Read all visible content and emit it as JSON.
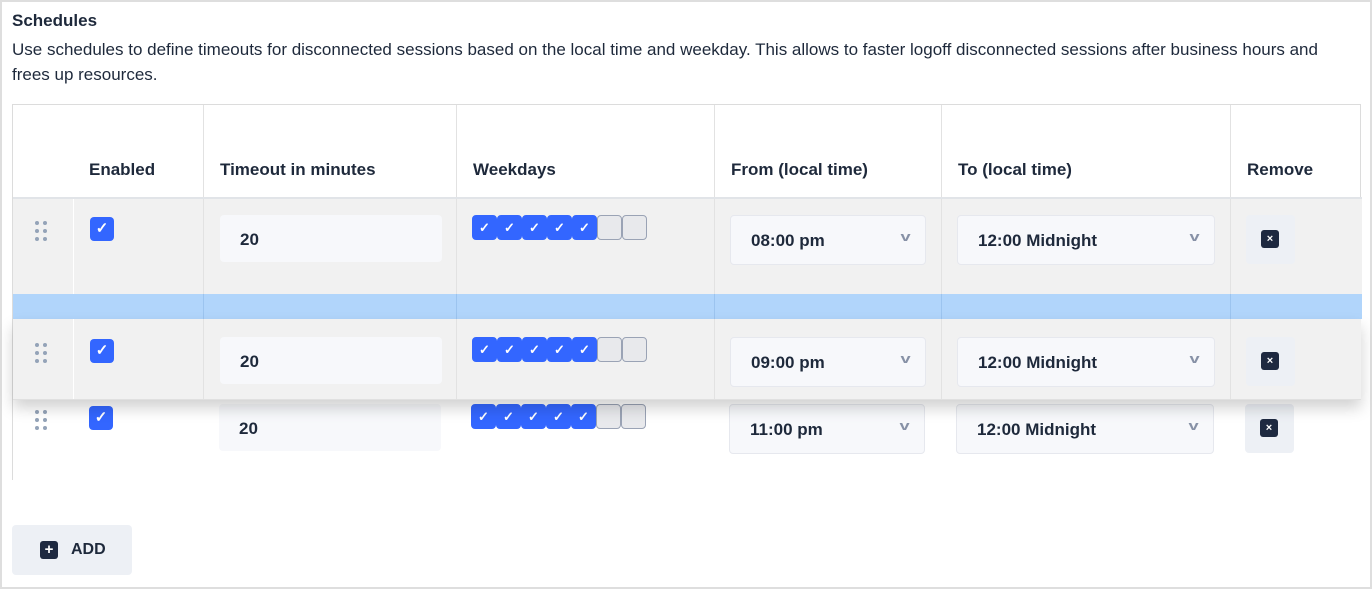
{
  "section": {
    "title": "Schedules",
    "description": "Use schedules to define timeouts for disconnected sessions based on the local time and weekday. This allows to faster logoff disconnected sessions after business hours and frees up resources."
  },
  "table": {
    "headers": {
      "enabled": "Enabled",
      "timeout": "Timeout in minutes",
      "weekdays": "Weekdays",
      "from": "From (local time)",
      "to": "To (local time)",
      "remove": "Remove"
    },
    "rows": [
      {
        "enabled": true,
        "timeout": "20",
        "weekdays": [
          true,
          true,
          true,
          true,
          true,
          false,
          false
        ],
        "from": "08:00 pm",
        "to": "12:00 Midnight"
      },
      {
        "enabled": true,
        "timeout": "20",
        "weekdays": [
          true,
          true,
          true,
          true,
          true,
          false,
          false
        ],
        "from": "09:00 pm",
        "to": "12:00 Midnight",
        "dragging": true
      },
      {
        "enabled": true,
        "timeout": "20",
        "weekdays": [
          true,
          true,
          true,
          true,
          true,
          false,
          false
        ],
        "from": "11:00 pm",
        "to": "12:00 Midnight"
      }
    ]
  },
  "add_button": {
    "label": "ADD"
  },
  "colors": {
    "accent": "#3366ff",
    "drop_indicator": "#b1d5fb",
    "dark": "#1e2940"
  }
}
